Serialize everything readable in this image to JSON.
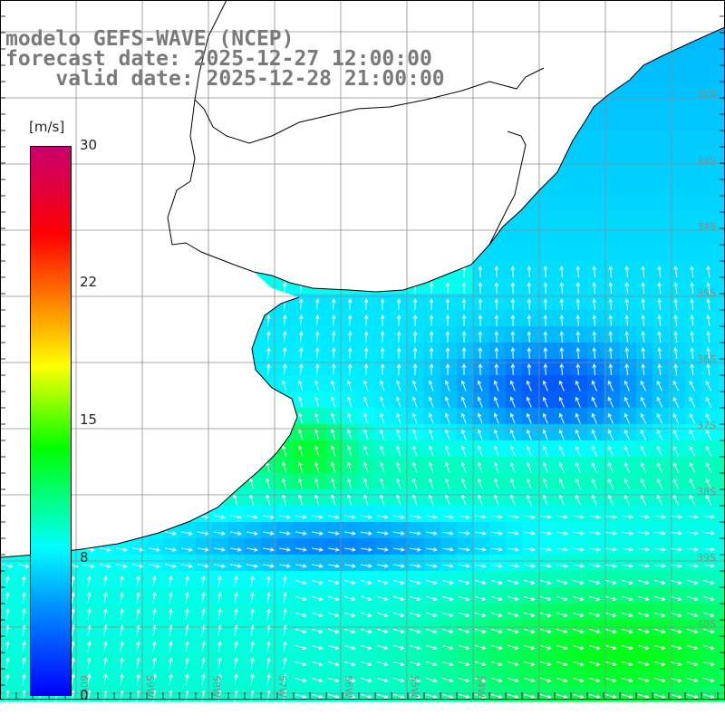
{
  "title": {
    "line1": "modelo GEFS-WAVE (NCEP)",
    "line2": "forecast date: 2025-12-27 12:00:00",
    "line3": "    valid date: 2025-12-28 21:00:00"
  },
  "colorbar": {
    "units": "[m/s]",
    "ticks": [
      "30",
      "22",
      "15",
      "8",
      "0"
    ],
    "tick_values": [
      30,
      22,
      15,
      8,
      0
    ],
    "colors": [
      "#0000ff",
      "#00ffff",
      "#00ff00",
      "#ffff00",
      "#ff0000",
      "#c8006e"
    ]
  },
  "lat_labels": [
    "32S",
    "33S",
    "34S",
    "35S",
    "36S",
    "37S",
    "38S",
    "39S",
    "40S"
  ],
  "lon_labels": [
    "60W",
    "59W",
    "58W",
    "57W",
    "56W",
    "55W",
    "54W"
  ],
  "colors": {
    "land": "#ffffff",
    "coast": "#000000",
    "grid": "#8c8c8c",
    "arrow": "#ffffff"
  },
  "field_description_values": {
    "min_speed": 0,
    "max_speed_shown": 14
  }
}
